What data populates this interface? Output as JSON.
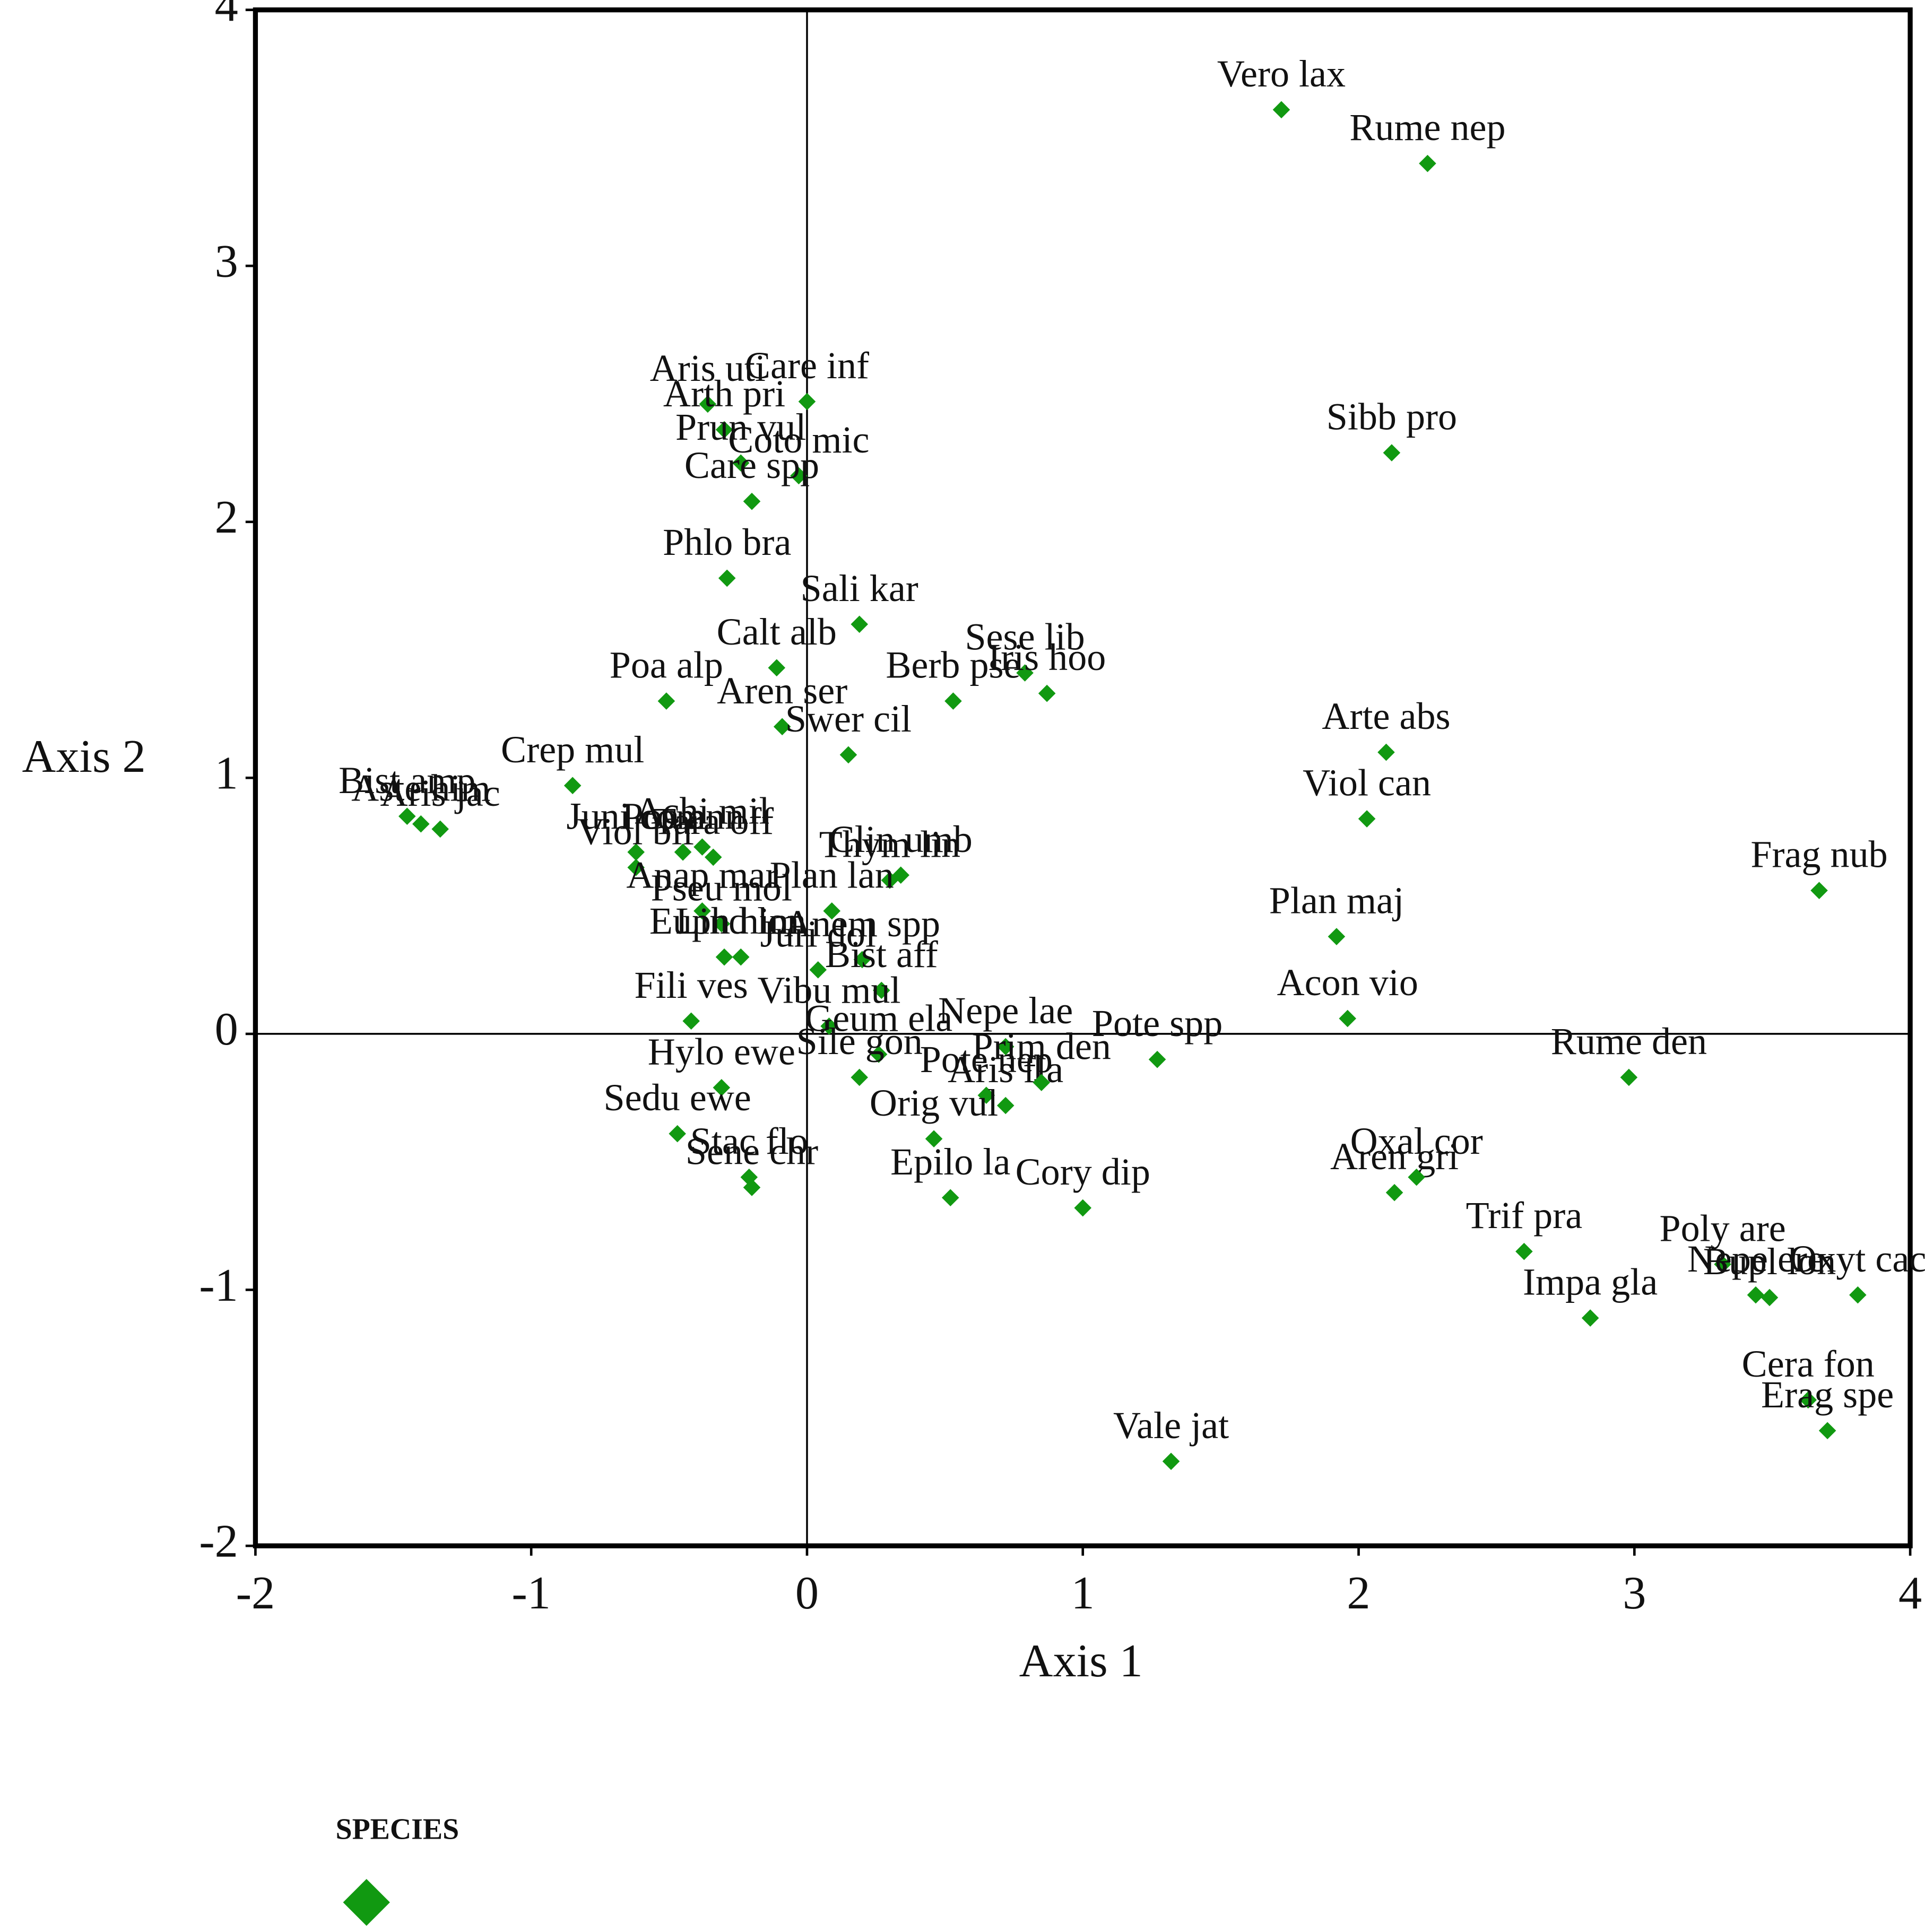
{
  "chart_data": {
    "type": "scatter",
    "x_label": "Axis 1",
    "y_label": "Axis 2",
    "xlim": [
      -2,
      4
    ],
    "ylim": [
      -2,
      4
    ],
    "xticks": [
      -2,
      -1,
      0,
      1,
      2,
      3,
      4
    ],
    "yticks": [
      -2,
      -1,
      0,
      1,
      2,
      3,
      4
    ],
    "series": [
      {
        "name": "SPECIES",
        "color": "#119911",
        "labels": [
          "Vero lax",
          "Rume nep",
          "Aris uti",
          "Arth pri",
          "Care inf",
          "Sibb pro",
          "Prun vul",
          "Coto mic",
          "Care spp",
          "Phlo bra",
          "Sali kar",
          "Sese lib",
          "Calt alb",
          "Berb pse",
          "Iris hoo",
          "Aris jac",
          "Poa alp",
          "Aren ser",
          "Arte abs",
          "Bist amp",
          "Crep mul",
          "Swer cil",
          "Aste him",
          "Tara off",
          "Clin umb",
          "Viol can",
          "Poa ann",
          "Achi mil",
          "Thym lin",
          "Frag nub",
          "Juni com",
          "Viol bif",
          "Anem spp",
          "Aris fla",
          "Anap mar",
          "Pseu mol",
          "Plan lan",
          "Plan maj",
          "Euph him",
          "Lind lon",
          "Bist aff",
          "Juri dol",
          "Fili ves",
          "Vibu mul",
          "Nepe lae",
          "Acon vio",
          "Hylo ewe",
          "Geum ela",
          "Pote spp",
          "Rume den",
          "Sedu ewe",
          "Sile gon",
          "Pote nep",
          "Aren gri",
          "Stac flo",
          "Prim den",
          "Epilo la",
          "Oxal cor",
          "Poly are",
          "Sene chr",
          "Orig vul",
          "Trif pra",
          "Cory dip",
          "Oxyt cac",
          "Impa gla",
          "Nepe ere",
          "Bupl lon",
          "Cera fon",
          "Erag spe",
          "Vale jat"
        ],
        "x": [
          1.72,
          2.25,
          -0.36,
          -0.3,
          0.0,
          2.12,
          -0.24,
          -0.03,
          -0.2,
          -0.29,
          0.19,
          0.79,
          -0.11,
          0.53,
          0.87,
          -1.33,
          -0.51,
          -0.09,
          2.1,
          -1.45,
          -0.85,
          0.15,
          -1.4,
          -0.34,
          0.34,
          2.03,
          -0.45,
          -0.38,
          0.3,
          3.67,
          -0.62,
          -0.62,
          0.2,
          0.72,
          -0.38,
          -0.31,
          0.09,
          1.92,
          -0.3,
          -0.24,
          0.27,
          0.04,
          -0.42,
          0.08,
          0.72,
          1.96,
          -0.31,
          0.26,
          1.27,
          2.98,
          -0.47,
          0.19,
          0.65,
          2.13,
          -0.21,
          0.85,
          0.52,
          2.21,
          3.32,
          -0.2,
          0.46,
          2.6,
          1.0,
          3.81,
          2.84,
          3.44,
          3.49,
          3.63,
          3.7,
          1.32
        ],
        "values": [
          3.61,
          3.4,
          2.46,
          2.36,
          2.47,
          2.27,
          2.23,
          2.18,
          2.08,
          1.78,
          1.6,
          1.41,
          1.43,
          1.3,
          1.33,
          0.8,
          1.3,
          1.2,
          1.1,
          0.85,
          0.97,
          1.09,
          0.82,
          0.69,
          0.62,
          0.84,
          0.71,
          0.73,
          0.6,
          0.56,
          0.71,
          0.65,
          0.29,
          -0.28,
          0.48,
          0.43,
          0.48,
          0.38,
          0.3,
          0.3,
          0.17,
          0.25,
          0.05,
          0.03,
          -0.05,
          0.06,
          -0.21,
          -0.08,
          -0.1,
          -0.17,
          -0.39,
          -0.17,
          -0.24,
          -0.62,
          -0.56,
          -0.19,
          -0.64,
          -0.56,
          -0.9,
          -0.6,
          -0.41,
          -0.85,
          -0.68,
          -1.02,
          -1.11,
          -1.02,
          -1.03,
          -1.43,
          -1.55,
          -1.67
        ]
      }
    ]
  }
}
